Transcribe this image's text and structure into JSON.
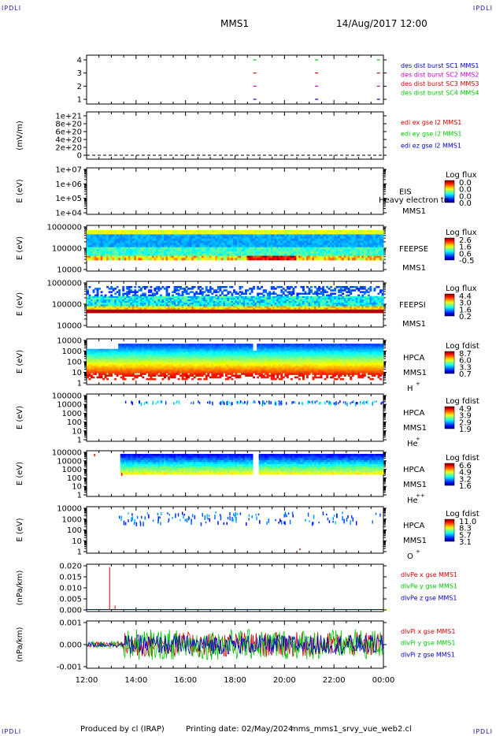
{
  "header": {
    "corner_label": "IPDLI",
    "spacecraft": "MMS1",
    "datetime": "14/Aug/2017 12:00"
  },
  "footer": {
    "produced_by": "Produced by cl (IRAP)",
    "printing_date": "Printing date: 02/May/2024",
    "filename": "mms_mms1_srvy_vue_web2.cl"
  },
  "colors": {
    "mms1": "#0000c8",
    "mms2": "#c800c8",
    "mms3": "#d40000",
    "mms4": "#00c800",
    "ex": "#d40000",
    "ey": "#00c800",
    "ez": "#0000c8"
  },
  "chart_data": [
    {
      "type": "line",
      "panel": "burst",
      "ylim": [
        0.5,
        4.5
      ],
      "yticks": [
        "4",
        "3",
        "2",
        "1"
      ],
      "legend": [
        {
          "label": "des dist burst SC1 MMS1",
          "color": "#0000c8"
        },
        {
          "label": "des dist burst SC2 MMS2",
          "color": "#c800c8"
        },
        {
          "label": "des dist burst SC3 MMS3",
          "color": "#d40000"
        },
        {
          "label": "des dist burst SC4 MMS4",
          "color": "#00c800"
        }
      ],
      "burst_times_hours": [
        18.8,
        21.3,
        23.8
      ]
    },
    {
      "type": "line",
      "panel": "edi",
      "ylabel": "(mV/m)",
      "yticks": [
        "1e+21",
        "8e+20",
        "6e+20",
        "4e+20",
        "2e+20",
        "0"
      ],
      "legend": [
        {
          "label": "edi ex gse l2 MMS1",
          "color": "#d40000"
        },
        {
          "label": "edi ey gse l2 MMS1",
          "color": "#00c800"
        },
        {
          "label": "edi ez gse l2 MMS1",
          "color": "#0000c8"
        }
      ]
    },
    {
      "type": "heatmap",
      "panel": "eis",
      "ylabel": "E (eV)",
      "scale": "log",
      "yticks": [
        "1e+07",
        "1e+06",
        "1e+05",
        "1e+04"
      ],
      "side_labels": [
        "EIS",
        "MMS1"
      ],
      "overlay_text": "Heavy electron to",
      "colorbar_title": "Log flux",
      "colorbar_ticks": [
        "0.0",
        "0.0",
        "0.0",
        "0.0"
      ]
    },
    {
      "type": "heatmap",
      "panel": "feeps_e",
      "ylabel": "E (eV)",
      "scale": "log",
      "yticks": [
        "1000000",
        "100000",
        "10000"
      ],
      "side_labels": [
        "FEEPSE",
        "MMS1"
      ],
      "colorbar_title": "Log flux",
      "colorbar_ticks": [
        "2.6",
        "1.6",
        "0.6",
        "-0.5"
      ]
    },
    {
      "type": "heatmap",
      "panel": "feeps_i",
      "ylabel": "E (eV)",
      "scale": "log",
      "yticks": [
        "1000000",
        "100000",
        "10000"
      ],
      "side_labels": [
        "FEEPSI",
        "MMS1"
      ],
      "colorbar_title": "Log flux",
      "colorbar_ticks": [
        "4.4",
        "3.0",
        "1.6",
        "0.2"
      ]
    },
    {
      "type": "heatmap",
      "panel": "hpca_h",
      "ylabel": "E (eV)",
      "scale": "log",
      "yticks": [
        "10000",
        "1000",
        "100",
        "10",
        "1"
      ],
      "side_labels": [
        "HPCA",
        "MMS1",
        "H"
      ],
      "species_sup": "+",
      "colorbar_title": "Log fdist",
      "colorbar_ticks": [
        "8.7",
        "6.0",
        "3.3",
        "0.7"
      ]
    },
    {
      "type": "heatmap",
      "panel": "hpca_he",
      "ylabel": "E (eV)",
      "scale": "log",
      "yticks": [
        "100000",
        "10000",
        "1000",
        "100",
        "10",
        "1"
      ],
      "side_labels": [
        "HPCA",
        "MMS1",
        "He"
      ],
      "species_sup": "+",
      "colorbar_title": "Log fdist",
      "colorbar_ticks": [
        "4.9",
        "3.9",
        "2.9",
        "1.9"
      ]
    },
    {
      "type": "heatmap",
      "panel": "hpca_hepp",
      "ylabel": "E (eV)",
      "scale": "log",
      "yticks": [
        "100000",
        "10000",
        "1000",
        "100",
        "10",
        "1"
      ],
      "side_labels": [
        "HPCA",
        "MMS1",
        "He"
      ],
      "species_sup": "++",
      "colorbar_title": "Log fdist",
      "colorbar_ticks": [
        "6.6",
        "4.9",
        "3.2",
        "1.6"
      ]
    },
    {
      "type": "heatmap",
      "panel": "hpca_o",
      "ylabel": "E (eV)",
      "scale": "log",
      "yticks": [
        "10000",
        "1000",
        "100",
        "10",
        "1"
      ],
      "side_labels": [
        "HPCA",
        "MMS1",
        "O"
      ],
      "species_sup": "+",
      "colorbar_title": "Log fdist",
      "colorbar_ticks": [
        "11.0",
        "8.3",
        "5.7",
        "3.1"
      ]
    },
    {
      "type": "line",
      "panel": "dpe",
      "ylabel": "(nPa/km)",
      "yticks": [
        "0.020",
        "0.015",
        "0.010",
        "0.005",
        "0.000"
      ],
      "ylim": [
        -0.001,
        0.0225
      ],
      "legend": [
        {
          "label": "dlvPe x gse MMS1",
          "color": "#d40000"
        },
        {
          "label": "dlvPe y gse MMS1",
          "color": "#00c800"
        },
        {
          "label": "dlvPe z gse MMS1",
          "color": "#0000c8"
        }
      ],
      "spikes": [
        {
          "t": 12.93,
          "v": 0.021
        },
        {
          "t": 13.15,
          "v": 0.002
        }
      ]
    },
    {
      "type": "line",
      "panel": "dpi",
      "ylabel": "(nPa/km)",
      "yticks": [
        "0.001",
        "0.000",
        "-0.001"
      ],
      "ylim": [
        -0.0017,
        0.0017
      ],
      "legend": [
        {
          "label": "dlvPi x gse MMS1",
          "color": "#d40000"
        },
        {
          "label": "dlvPi y gse MMS1",
          "color": "#00c800"
        },
        {
          "label": "dlvPi z gse MMS1",
          "color": "#0000c8"
        }
      ]
    }
  ],
  "time_axis": {
    "range_hours": [
      12,
      24
    ],
    "ticks": [
      "12:00",
      "14:00",
      "16:00",
      "18:00",
      "20:00",
      "22:00",
      "00:00"
    ]
  }
}
